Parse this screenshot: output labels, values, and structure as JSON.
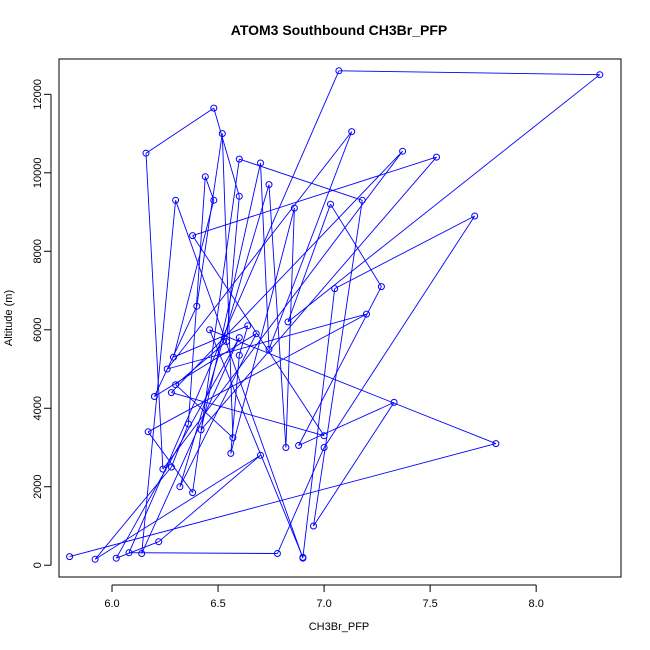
{
  "chart_data": {
    "type": "line",
    "title": "ATOM3 Southbound CH3Br_PFP",
    "xlabel": "CH3Br_PFP",
    "ylabel": "Altitude (m)",
    "xlim": [
      5.75,
      8.4
    ],
    "ylim": [
      -300,
      12900
    ],
    "xticks": [
      "6.0",
      "6.5",
      "7.0",
      "7.5",
      "8.0"
    ],
    "yticks": [
      "0",
      "2000",
      "4000",
      "6000",
      "8000",
      "10000",
      "12000"
    ],
    "grid": false,
    "legend": "none",
    "series": [
      {
        "color": "#0000ff",
        "marker": "open-circle",
        "x": [
          5.8,
          7.81,
          6.46,
          6.9,
          7.05,
          7.71,
          7.0,
          6.78,
          6.08,
          7.07,
          8.3,
          6.83,
          7.03,
          7.27,
          6.88,
          7.33,
          6.95,
          7.18,
          6.6,
          6.38,
          6.17,
          7.2,
          6.26,
          7.13,
          6.74,
          6.7,
          6.42,
          7.53,
          6.38,
          7.0,
          6.28,
          7.37,
          6.24,
          6.16,
          6.48,
          6.6,
          6.54,
          6.3,
          6.57,
          6.52,
          6.4,
          6.2,
          6.68,
          6.32,
          6.74,
          6.82,
          6.86,
          6.56,
          6.6,
          6.64,
          6.29,
          6.48,
          6.44,
          6.36,
          6.28,
          5.92,
          6.7,
          6.22,
          6.02,
          6.6,
          6.14,
          6.3,
          6.9
        ],
        "y": [
          220,
          3100,
          6000,
          200,
          7050,
          8900,
          3000,
          300,
          320,
          12600,
          12500,
          6200,
          9200,
          7100,
          3050,
          4150,
          1000,
          9300,
          10350,
          1850,
          3400,
          6400,
          5000,
          11050,
          5500,
          10250,
          3450,
          10400,
          8400,
          3300,
          4400,
          10550,
          2450,
          10500,
          11650,
          9400,
          5700,
          4600,
          3250,
          11000,
          6600,
          4300,
          5900,
          2000,
          9700,
          3000,
          9100,
          2850,
          5350,
          6100,
          5300,
          9300,
          9900,
          3600,
          2500,
          150,
          2800,
          600,
          180,
          5800,
          300,
          9300,
          180
        ]
      }
    ]
  }
}
